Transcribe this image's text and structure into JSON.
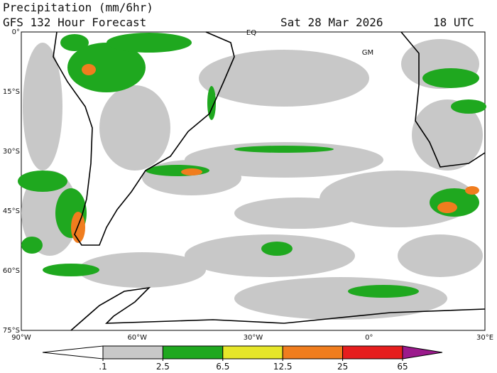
{
  "header": {
    "title": "Precipitation (mm/6hr)",
    "subtitle": "GFS 132 Hour Forecast",
    "date": "Sat 28 Mar 2026",
    "time": "18 UTC"
  },
  "map": {
    "lat_labels": [
      "0°",
      "15°S",
      "30°S",
      "45°S",
      "60°S",
      "75°S"
    ],
    "lon_labels": [
      "90°W",
      "60°W",
      "30°W",
      "0°",
      "30°E"
    ],
    "annotations": [
      "EQ",
      "GM"
    ]
  },
  "colorbar": {
    "ticks": [
      {
        "value": 0.1,
        "label": ".1"
      },
      2.5,
      6.5,
      12.5,
      25,
      65
    ],
    "colors": [
      "#ffffff",
      "#c8c8c8",
      "#1fa81f",
      "#e6e629",
      "#f07d1e",
      "#e61e1e",
      "#9b1a8c"
    ]
  }
}
